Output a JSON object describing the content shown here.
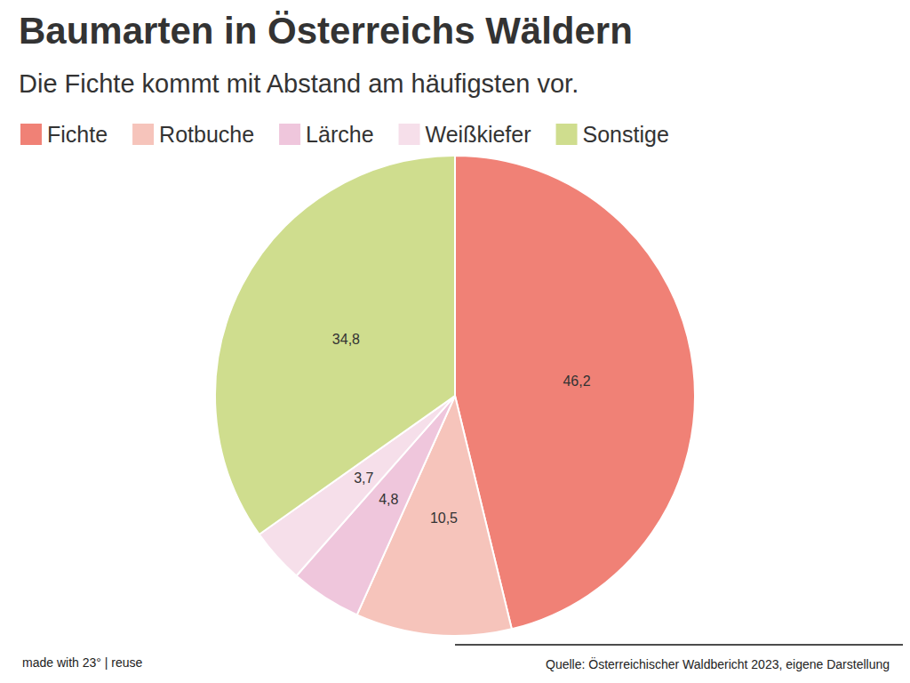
{
  "chart_data": {
    "type": "pie",
    "title": "Baumarten in Österreichs Wäldern",
    "subtitle": "Die Fichte kommt mit Abstand am häufigsten vor.",
    "categories": [
      "Fichte",
      "Rotbuche",
      "Lärche",
      "Weißkiefer",
      "Sonstige"
    ],
    "values": [
      46.2,
      10.5,
      4.8,
      3.7,
      34.8
    ],
    "value_labels": [
      "46,2",
      "10,5",
      "4,8",
      "3,7",
      "34,8"
    ],
    "colors": [
      "#f08176",
      "#f6c4bb",
      "#efc6dc",
      "#f6dfea",
      "#cfdd8e"
    ],
    "data_labels": true,
    "legend": "top-left",
    "caption": "made with 23° | reuse",
    "source": "Quelle: Österreichischer Waldbericht 2023, eigene Darstellung"
  }
}
